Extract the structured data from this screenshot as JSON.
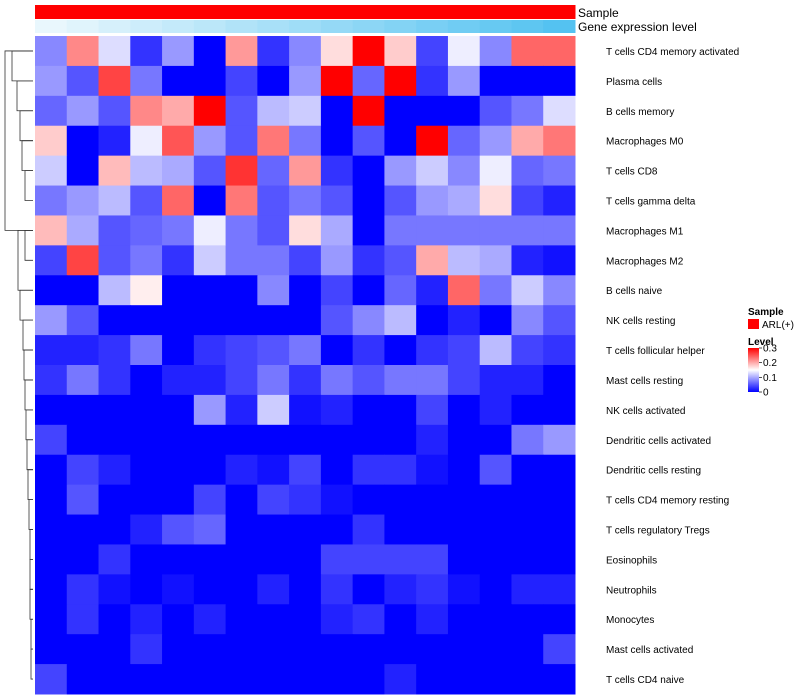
{
  "chart_data": {
    "type": "heatmap",
    "annotations": [
      {
        "label": "Sample"
      },
      {
        "label": "Gene expression level"
      }
    ],
    "rows": [
      "T cells CD4 memory activated",
      "Plasma cells",
      "B cells memory",
      "Macrophages M0",
      "T cells CD8",
      "T cells gamma delta",
      "Macrophages M1",
      "Macrophages M2",
      "B cells naive",
      "NK cells resting",
      "T cells follicular helper",
      "Mast cells resting",
      "NK cells activated",
      "Dendritic cells activated",
      "Dendritic cells resting",
      "T cells CD4 memory resting",
      "T cells regulatory  Tregs",
      "Eosinophils",
      "Neutrophils",
      "Monocytes",
      "Mast cells activated",
      "T cells CD4 naive"
    ],
    "values": [
      [
        0.08,
        0.22,
        0.13,
        0.03,
        0.09,
        0.0,
        0.21,
        0.03,
        0.08,
        0.17,
        0.3,
        0.18,
        0.04,
        0.14,
        0.08,
        0.24,
        0.24
      ],
      [
        0.09,
        0.05,
        0.26,
        0.07,
        0.0,
        0.0,
        0.04,
        0.0,
        0.09,
        0.3,
        0.06,
        0.3,
        0.03,
        0.09,
        0.0,
        0.0,
        0.0
      ],
      [
        0.06,
        0.09,
        0.05,
        0.22,
        0.2,
        0.3,
        0.05,
        0.11,
        0.12,
        0.0,
        0.3,
        0.0,
        0.0,
        0.0,
        0.05,
        0.07,
        0.13
      ],
      [
        0.18,
        0.0,
        0.02,
        0.14,
        0.25,
        0.09,
        0.05,
        0.23,
        0.07,
        0.0,
        0.05,
        0.0,
        0.3,
        0.06,
        0.09,
        0.2,
        0.23
      ],
      [
        0.12,
        0.0,
        0.19,
        0.11,
        0.1,
        0.05,
        0.27,
        0.06,
        0.21,
        0.03,
        0.0,
        0.09,
        0.12,
        0.08,
        0.14,
        0.06,
        0.07
      ],
      [
        0.07,
        0.09,
        0.11,
        0.05,
        0.24,
        0.0,
        0.23,
        0.05,
        0.07,
        0.05,
        0.0,
        0.05,
        0.09,
        0.1,
        0.17,
        0.04,
        0.02
      ],
      [
        0.19,
        0.1,
        0.05,
        0.06,
        0.07,
        0.14,
        0.07,
        0.05,
        0.17,
        0.1,
        0.0,
        0.07,
        0.07,
        0.07,
        0.07,
        0.07,
        0.07
      ],
      [
        0.04,
        0.26,
        0.05,
        0.07,
        0.03,
        0.12,
        0.07,
        0.07,
        0.04,
        0.09,
        0.03,
        0.05,
        0.2,
        0.11,
        0.1,
        0.02,
        0.01
      ],
      [
        0.0,
        0.0,
        0.11,
        0.16,
        0.0,
        0.0,
        0.0,
        0.08,
        0.0,
        0.04,
        0.0,
        0.06,
        0.02,
        0.24,
        0.07,
        0.12,
        0.08
      ],
      [
        0.09,
        0.05,
        0.0,
        0.0,
        0.0,
        0.0,
        0.0,
        0.0,
        0.0,
        0.05,
        0.08,
        0.11,
        0.0,
        0.02,
        0.0,
        0.08,
        0.05
      ],
      [
        0.02,
        0.02,
        0.03,
        0.07,
        0.0,
        0.03,
        0.04,
        0.05,
        0.07,
        0.0,
        0.03,
        0.0,
        0.03,
        0.04,
        0.11,
        0.04,
        0.03
      ],
      [
        0.03,
        0.07,
        0.03,
        0.0,
        0.02,
        0.02,
        0.04,
        0.07,
        0.03,
        0.07,
        0.05,
        0.07,
        0.07,
        0.04,
        0.02,
        0.02,
        0.0
      ],
      [
        0.0,
        0.0,
        0.0,
        0.0,
        0.0,
        0.09,
        0.02,
        0.12,
        0.01,
        0.02,
        0.0,
        0.0,
        0.04,
        0.0,
        0.02,
        0.0,
        0.0
      ],
      [
        0.04,
        0.0,
        0.0,
        0.0,
        0.0,
        0.0,
        0.0,
        0.0,
        0.0,
        0.0,
        0.0,
        0.0,
        0.02,
        0.0,
        0.0,
        0.07,
        0.09
      ],
      [
        0.0,
        0.04,
        0.02,
        0.0,
        0.0,
        0.0,
        0.02,
        0.01,
        0.04,
        0.0,
        0.03,
        0.03,
        0.01,
        0.0,
        0.05,
        0.0,
        0.0
      ],
      [
        0.0,
        0.05,
        0.0,
        0.0,
        0.0,
        0.04,
        0.0,
        0.04,
        0.03,
        0.01,
        0.0,
        0.0,
        0.0,
        0.0,
        0.0,
        0.0,
        0.0
      ],
      [
        0.0,
        0.0,
        0.0,
        0.02,
        0.05,
        0.06,
        0.0,
        0.0,
        0.0,
        0.0,
        0.03,
        0.0,
        0.0,
        0.0,
        0.0,
        0.0,
        0.0
      ],
      [
        0.0,
        0.0,
        0.03,
        0.0,
        0.0,
        0.0,
        0.0,
        0.0,
        0.0,
        0.04,
        0.04,
        0.04,
        0.04,
        0.0,
        0.0,
        0.0,
        0.0
      ],
      [
        0.0,
        0.03,
        0.01,
        0.0,
        0.01,
        0.0,
        0.0,
        0.02,
        0.0,
        0.03,
        0.0,
        0.02,
        0.03,
        0.01,
        0.0,
        0.02,
        0.02
      ],
      [
        0.0,
        0.03,
        0.0,
        0.02,
        0.0,
        0.02,
        0.0,
        0.0,
        0.0,
        0.02,
        0.03,
        0.0,
        0.02,
        0.0,
        0.0,
        0.0,
        0.0
      ],
      [
        0.0,
        0.0,
        0.0,
        0.03,
        0.0,
        0.0,
        0.0,
        0.0,
        0.0,
        0.0,
        0.0,
        0.0,
        0.0,
        0.0,
        0.0,
        0.0,
        0.04
      ],
      [
        0.04,
        0.0,
        0.0,
        0.0,
        0.0,
        0.0,
        0.0,
        0.0,
        0.0,
        0.0,
        0.0,
        0.02,
        0.0,
        0.0,
        0.0,
        0.0,
        0.0
      ]
    ],
    "gene_expression_level": [
      0.0,
      0.06,
      0.12,
      0.18,
      0.24,
      0.3,
      0.36,
      0.42,
      0.48,
      0.54,
      0.6,
      0.66,
      0.72,
      0.78,
      0.84,
      0.9,
      0.96
    ],
    "color_scale": {
      "min": 0,
      "mid": 0.15,
      "max": 0.3,
      "low_color": "#0000ff",
      "mid_color": "#ffffff",
      "high_color": "#ff0000"
    },
    "sample_color": "#ff0000",
    "expression_low_color": "#e9f7fd",
    "expression_high_color": "#4ec0f0",
    "legend": {
      "sample_title": "Sample",
      "sample_entry": "ARL(+)",
      "level_title": "Level",
      "ticks": [
        {
          "value": 0.3,
          "label": "0.3"
        },
        {
          "value": 0.2,
          "label": "0.2"
        },
        {
          "value": 0.1,
          "label": "0.1"
        },
        {
          "value": 0,
          "label": "0"
        }
      ]
    },
    "legend_placement": "right",
    "row_dendrogram": "left"
  }
}
